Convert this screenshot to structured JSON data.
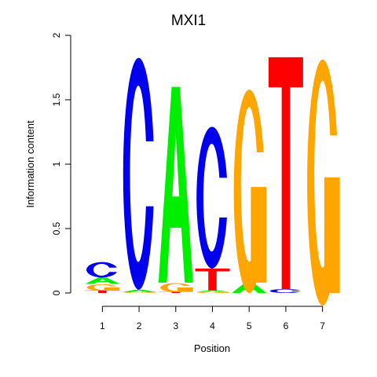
{
  "chart_data": {
    "type": "sequence-logo",
    "title": "MXI1",
    "xlabel": "Position",
    "ylabel": "Information content",
    "ylim": [
      0,
      2
    ],
    "yticks": [
      "0",
      "0.5",
      "1",
      "1.5",
      "2"
    ],
    "positions": [
      "1",
      "2",
      "3",
      "4",
      "5",
      "6",
      "7"
    ],
    "colors": {
      "A": "#00ee00",
      "C": "#0000ee",
      "G": "#ffa500",
      "T": "#ff0000"
    },
    "stacks": [
      [
        {
          "letter": "T",
          "bits": 0.02
        },
        {
          "letter": "G",
          "bits": 0.05
        },
        {
          "letter": "A",
          "bits": 0.05
        },
        {
          "letter": "C",
          "bits": 0.12
        }
      ],
      [
        {
          "letter": "G",
          "bits": 0.005
        },
        {
          "letter": "A",
          "bits": 0.02
        },
        {
          "letter": "C",
          "bits": 1.8
        }
      ],
      [
        {
          "letter": "T",
          "bits": 0.01
        },
        {
          "letter": "G",
          "bits": 0.07
        },
        {
          "letter": "A",
          "bits": 1.52
        }
      ],
      [
        {
          "letter": "G",
          "bits": 0.01
        },
        {
          "letter": "A",
          "bits": 0.01
        },
        {
          "letter": "T",
          "bits": 0.17
        },
        {
          "letter": "C",
          "bits": 1.1
        }
      ],
      [
        {
          "letter": "A",
          "bits": 0.08
        },
        {
          "letter": "G",
          "bits": 1.58
        }
      ],
      [
        {
          "letter": "C",
          "bits": 0.03
        },
        {
          "letter": "T",
          "bits": 1.8
        }
      ],
      [
        {
          "letter": "G",
          "bits": 1.91
        }
      ]
    ]
  }
}
